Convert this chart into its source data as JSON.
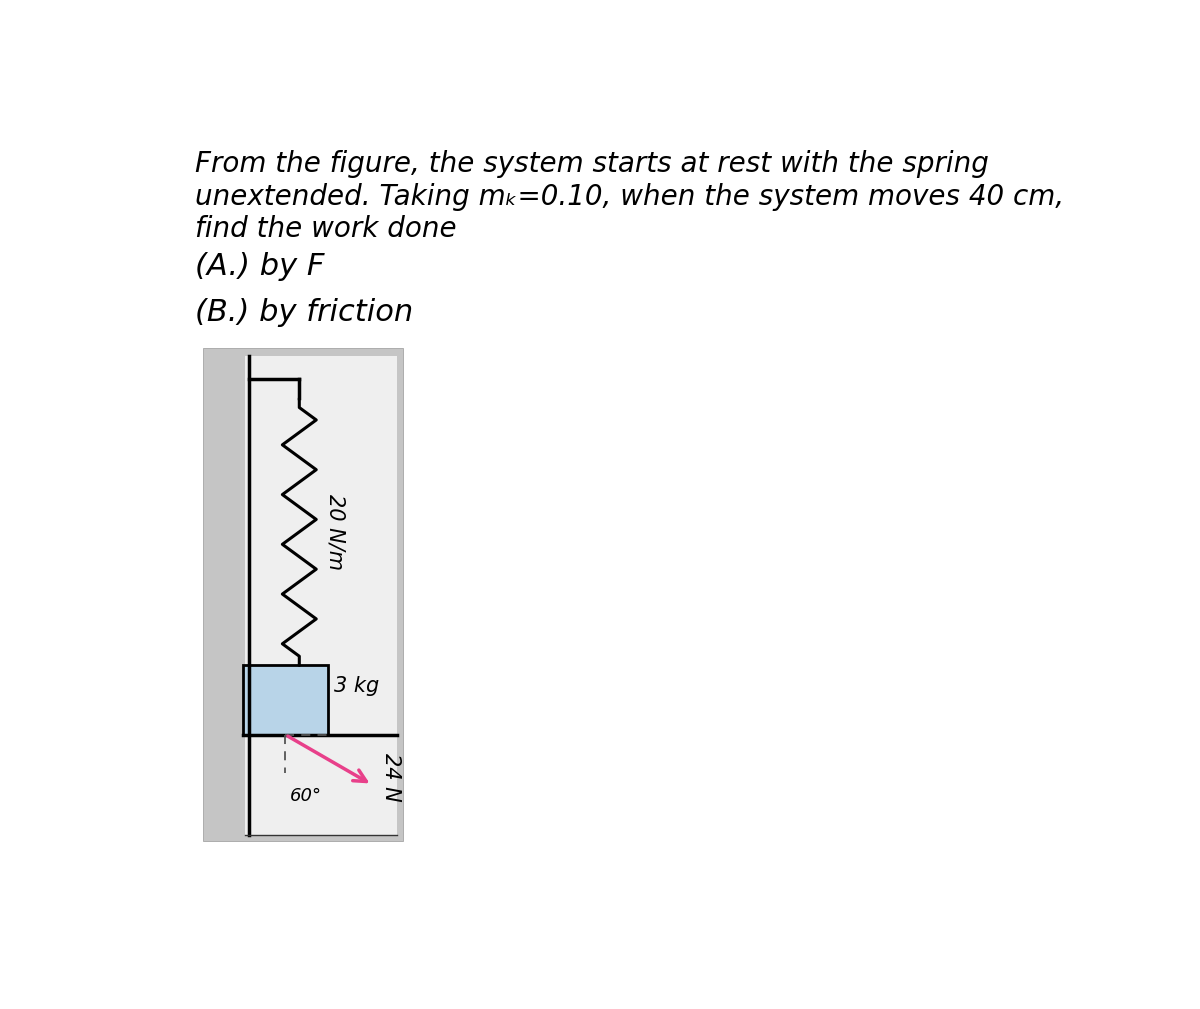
{
  "line1": "From the figure, the system starts at rest with the spring",
  "line2": "unextended. Taking mₖ=0.10, when the system moves 40 cm,",
  "line3": "find the work done",
  "part_a": "(A.) by F",
  "part_b": "(B.) by friction",
  "spring_label": "20 N/m",
  "mass_label": "3 kg",
  "force_label": "24 N",
  "angle_label": "60°",
  "bg_color": "#ffffff",
  "outer_bg": "#c8c8c8",
  "inner_bg": "#eeeeee",
  "block_color": "#b8d4e8",
  "block_border": "#000000",
  "spring_color": "#000000",
  "arrow_color": "#e8408a",
  "text_color": "#000000",
  "font_size_main": 20,
  "font_size_parts": 22,
  "font_size_diagram": 15
}
